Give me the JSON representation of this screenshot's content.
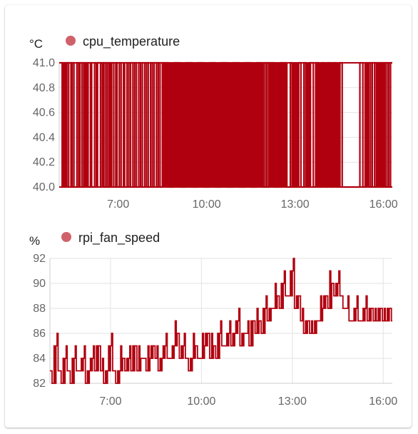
{
  "colors": {
    "series": "#b0000f",
    "legend_dot": "#d0616a"
  },
  "chart_data": [
    {
      "type": "line",
      "unit": "°C",
      "series": [
        {
          "name": "cpu_temperature"
        }
      ],
      "ylim": [
        40.0,
        41.0
      ],
      "y_ticks": [
        "41.0",
        "40.8",
        "40.6",
        "40.4",
        "40.2",
        "40.0"
      ],
      "x_ticks": [
        "7:00",
        "10:00",
        "13:00",
        "16:00"
      ],
      "xlim_hours": [
        5.0,
        16.3
      ],
      "grid": true,
      "legend": "top-left",
      "values_note_free": true,
      "x": [
        5.06,
        5.1,
        5.12,
        5.17,
        5.22,
        5.26,
        5.32,
        5.4,
        5.44,
        5.5,
        5.6,
        5.66,
        5.7,
        5.77,
        5.83,
        5.88,
        5.93,
        5.98,
        6.06,
        6.1,
        6.2,
        6.26,
        6.3,
        6.4,
        6.46,
        6.5,
        6.56,
        6.62,
        6.68,
        6.73,
        6.78,
        6.85,
        6.92,
        6.96,
        7.04,
        7.1,
        7.18,
        7.22,
        7.3,
        7.36,
        7.42,
        7.5,
        7.56,
        7.62,
        7.7,
        7.76,
        7.82,
        7.9,
        7.96,
        8.02,
        8.1,
        8.16,
        8.22,
        8.3,
        8.36,
        8.42,
        8.5,
        8.7,
        8.9,
        9.1,
        9.3,
        9.5,
        9.7,
        9.9,
        10.1,
        10.3,
        10.5,
        10.7,
        10.9,
        11.1,
        11.3,
        11.5,
        11.7,
        11.9,
        11.98,
        12.04,
        12.1,
        12.3,
        12.5,
        12.7,
        12.84,
        12.9,
        13.1,
        13.2,
        13.3,
        13.36,
        13.5,
        13.62,
        13.7,
        13.8,
        13.9,
        14.0,
        14.1,
        14.2,
        14.3,
        14.4,
        14.5,
        14.6,
        15.2,
        15.3,
        15.4,
        15.46,
        15.5,
        15.56,
        15.62,
        15.7,
        15.76,
        15.8,
        15.88,
        15.94,
        16.0,
        16.06,
        16.12,
        16.18,
        16.24
      ],
      "values": [
        41,
        40,
        41,
        40,
        41,
        40,
        41,
        40,
        41,
        40,
        41,
        40,
        41,
        40,
        41,
        40,
        41,
        40,
        41,
        40,
        41,
        40,
        41,
        40,
        41,
        40,
        41,
        40,
        41,
        40,
        41,
        40,
        41,
        40,
        41,
        40,
        41,
        40,
        41,
        40,
        41,
        40,
        41,
        40,
        41,
        40,
        41,
        40,
        41,
        40,
        41,
        40,
        41,
        40,
        41,
        40,
        41,
        40,
        41,
        40,
        41,
        40,
        41,
        40,
        41,
        40,
        41,
        40,
        41,
        40,
        41,
        40,
        41,
        40,
        41,
        40,
        41,
        40,
        41,
        40,
        41,
        40,
        41,
        40,
        41,
        40,
        41,
        40,
        41,
        40,
        41,
        40,
        41,
        40,
        41,
        40,
        41,
        40,
        41,
        40,
        41,
        40,
        41,
        40,
        41,
        40,
        41,
        40,
        41,
        40,
        41,
        40,
        41,
        40,
        41
      ]
    },
    {
      "type": "line",
      "unit": "%",
      "series": [
        {
          "name": "rpi_fan_speed"
        }
      ],
      "ylim": [
        82,
        92
      ],
      "y_ticks": [
        "92",
        "90",
        "88",
        "86",
        "84",
        "82"
      ],
      "x_ticks": [
        "7:00",
        "10:00",
        "13:00",
        "16:00"
      ],
      "xlim_hours": [
        5.0,
        16.3
      ],
      "grid": true,
      "legend": "top-left",
      "x": [
        5.0,
        5.1,
        5.2,
        5.3,
        5.4,
        5.5,
        5.6,
        5.7,
        5.8,
        5.9,
        6.0,
        6.1,
        6.2,
        6.3,
        6.4,
        6.5,
        6.6,
        6.7,
        6.8,
        6.9,
        7.0,
        7.1,
        7.2,
        7.3,
        7.4,
        7.5,
        7.6,
        7.7,
        7.8,
        7.9,
        8.0,
        8.1,
        8.2,
        8.3,
        8.4,
        8.5,
        8.6,
        8.7,
        8.8,
        8.9,
        9.0,
        9.1,
        9.2,
        9.3,
        9.4,
        9.5,
        9.6,
        9.7,
        9.8,
        9.9,
        10.0,
        10.1,
        10.2,
        10.3,
        10.4,
        10.5,
        10.6,
        10.7,
        10.8,
        10.9,
        11.0,
        11.1,
        11.2,
        11.3,
        11.4,
        11.5,
        11.6,
        11.7,
        11.8,
        11.9,
        12.0,
        12.1,
        12.2,
        12.3,
        12.4,
        12.5,
        12.6,
        12.7,
        12.8,
        12.9,
        13.0,
        13.1,
        13.2,
        13.3,
        13.4,
        13.5,
        13.6,
        13.7,
        13.8,
        13.9,
        14.0,
        14.1,
        14.2,
        14.3,
        14.4,
        14.5,
        14.6,
        14.7,
        14.8,
        14.9,
        15.0,
        15.1,
        15.2,
        15.3,
        15.4,
        15.5,
        15.6,
        15.7,
        15.8,
        15.9,
        16.0,
        16.1,
        16.2,
        16.3
      ],
      "values": [
        83,
        82,
        85,
        83,
        82,
        84,
        83,
        82,
        84,
        83,
        83,
        84,
        82,
        83,
        84,
        83,
        85,
        83,
        82,
        83,
        85,
        83,
        82,
        83,
        84,
        83,
        84,
        83,
        85,
        83,
        84,
        84,
        83,
        84,
        85,
        84,
        83,
        84,
        85,
        84,
        84,
        85,
        86,
        84,
        85,
        84,
        83,
        84,
        85,
        84,
        84,
        85,
        86,
        84,
        85,
        84,
        86,
        85,
        85,
        86,
        85,
        86,
        87,
        85,
        86,
        86,
        85,
        87,
        86,
        87,
        86,
        88,
        87,
        88,
        88,
        89,
        88,
        90,
        89,
        89,
        91,
        88,
        89,
        87,
        86,
        87,
        86,
        86,
        87,
        87,
        88,
        89,
        88,
        90,
        89,
        90,
        89,
        88,
        88,
        87,
        87,
        88,
        87,
        87,
        88,
        87,
        88,
        87,
        87,
        88,
        87,
        87,
        88,
        87
      ]
    }
  ]
}
